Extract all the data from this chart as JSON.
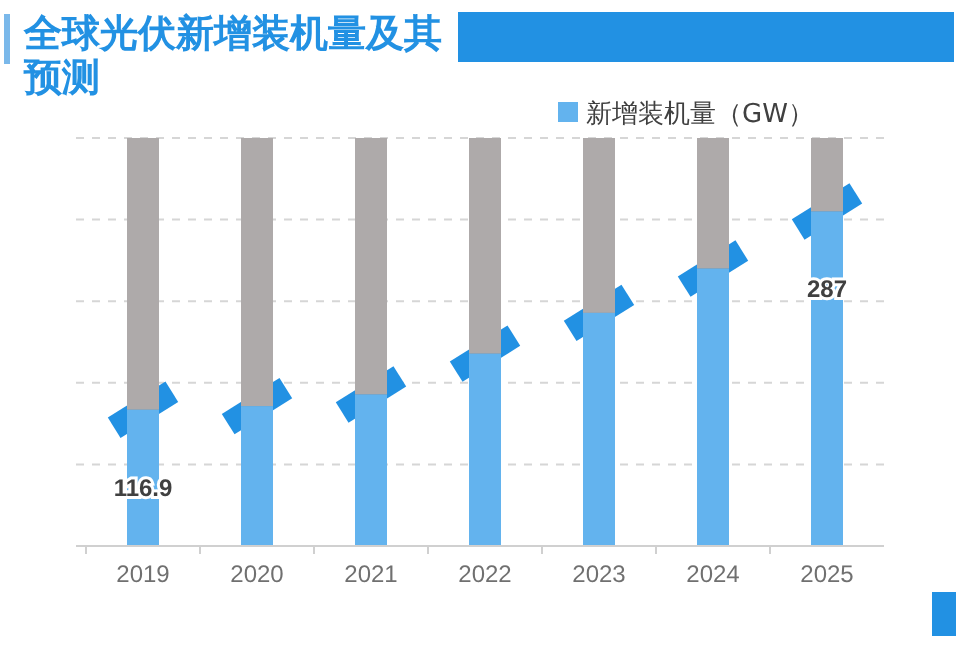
{
  "chart_data": {
    "type": "bar",
    "title": "全球光伏新增装机量及其预测",
    "categories": [
      "2019",
      "2020",
      "2021",
      "2022",
      "2023",
      "2024",
      "2025"
    ],
    "stacked": true,
    "ylim": [
      0,
      350
    ],
    "series": [
      {
        "name": "新增装机量（GW）",
        "color": "#63b3ee",
        "values": [
          116.9,
          120,
          130,
          165,
          200,
          238,
          287
        ],
        "value_labels": [
          "116.9",
          null,
          null,
          null,
          null,
          null,
          "287"
        ]
      },
      {
        "color": "#aeaaaa",
        "values": [
          233.1,
          230,
          220,
          185,
          150,
          112,
          63
        ]
      }
    ],
    "grid": "y",
    "legend": "top right"
  }
}
